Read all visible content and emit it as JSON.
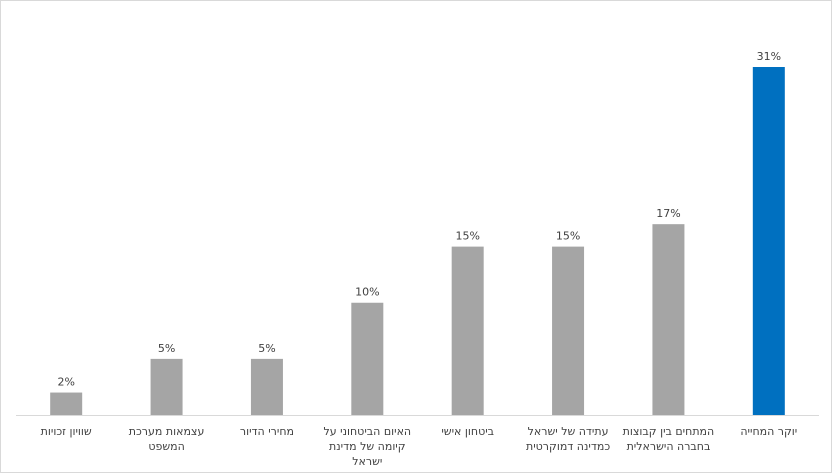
{
  "chart_data": {
    "type": "bar",
    "categories": [
      "שוויון זכויות",
      "עצמאות מערכת המשפט",
      "מחירי הדיור",
      "האיום הביטחוני על קיומה של מדינת ישראל",
      "ביטחון אישי",
      "עתידה של ישראל כמדינה דמוקרטית",
      "המתחים בין קבוצות בחברה הישראלית",
      "יוקר המחייה"
    ],
    "category_lines": [
      [
        "שוויון זכויות"
      ],
      [
        "עצמאות מערכת",
        "המשפט"
      ],
      [
        "מחירי הדיור"
      ],
      [
        "האיום הביטחוני על",
        "קיומה של מדינת",
        "ישראל"
      ],
      [
        "ביטחון אישי"
      ],
      [
        "עתידה של ישראל",
        "כמדינה דמוקרטית"
      ],
      [
        "המתחים בין קבוצות",
        "בחברה הישראלית"
      ],
      [
        "יוקר המחייה"
      ]
    ],
    "values": [
      2,
      5,
      5,
      10,
      15,
      15,
      17,
      31
    ],
    "data_labels": [
      "2%",
      "5%",
      "5%",
      "10%",
      "15%",
      "15%",
      "17%",
      "31%"
    ],
    "highlight_index": 7,
    "ylim": [
      0,
      31
    ],
    "grid": false,
    "legend": "none",
    "title": "",
    "xlabel": "",
    "ylabel": ""
  },
  "colors": {
    "bar": "#a5a5a5",
    "highlight": "#0070c0",
    "axis": "#d9d9d9",
    "text": "#404040"
  }
}
